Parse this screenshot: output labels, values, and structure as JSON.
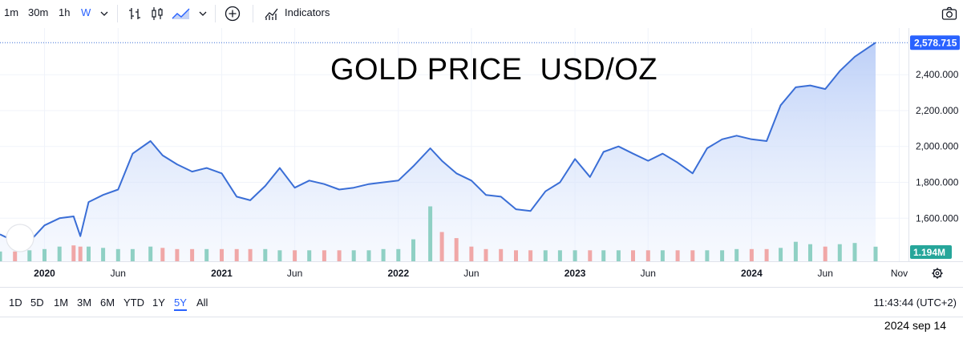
{
  "toolbar": {
    "intervals": [
      "1m",
      "30m",
      "1h",
      "W"
    ],
    "active_interval": "W",
    "indicators_label": "Indicators",
    "icons": [
      "chevron-down-icon",
      "bar-style-icon",
      "candle-style-icon",
      "area-style-icon",
      "add-icon",
      "indicators-icon",
      "camera-icon"
    ]
  },
  "title": "GOLD PRICE  USD/OZ",
  "colors": {
    "line": "#3a6ed6",
    "accent": "#2962ff",
    "volume_up": "#8fd0c4",
    "volume_down": "#f0a7a7",
    "label_bg": "#2962ff",
    "volume_label_bg": "#26a69a"
  },
  "chart_data": {
    "type": "area",
    "title": "GOLD PRICE  USD/OZ",
    "x_tick_labels": [
      "2020",
      "Jun",
      "2021",
      "Jun",
      "2022",
      "Jun",
      "2023",
      "Jun",
      "2024",
      "Jun",
      "Nov"
    ],
    "y_tick_labels": [
      "2,400.000",
      "2,200.000",
      "2,000.000",
      "1,800.000",
      "1,600.000"
    ],
    "y_ticks": [
      2400,
      2200,
      2000,
      1800,
      1600
    ],
    "ylim": [
      1360,
      2660
    ],
    "last_price": 2578.715,
    "last_price_label": "2,578.715",
    "volume_label": "1.194M",
    "grid": true,
    "series": [
      {
        "x": [
          "2019-10-01",
          "2019-11-01",
          "2019-12-01",
          "2020-01-01",
          "2020-02-01",
          "2020-03-01",
          "2020-03-15",
          "2020-04-01",
          "2020-05-01",
          "2020-06-01",
          "2020-07-01",
          "2020-08-07",
          "2020-09-01",
          "2020-10-01",
          "2020-11-01",
          "2020-12-01",
          "2021-01-01",
          "2021-02-01",
          "2021-03-01",
          "2021-04-01",
          "2021-05-01",
          "2021-06-01",
          "2021-07-01",
          "2021-08-01",
          "2021-09-01",
          "2021-10-01",
          "2021-11-01",
          "2021-12-01",
          "2022-01-01",
          "2022-02-01",
          "2022-03-08",
          "2022-04-01",
          "2022-05-01",
          "2022-06-01",
          "2022-07-01",
          "2022-08-01",
          "2022-09-01",
          "2022-10-01",
          "2022-11-01",
          "2022-12-01",
          "2023-01-01",
          "2023-02-01",
          "2023-03-01",
          "2023-04-01",
          "2023-05-01",
          "2023-06-01",
          "2023-07-01",
          "2023-08-01",
          "2023-09-01",
          "2023-10-01",
          "2023-11-01",
          "2023-12-01",
          "2024-01-01",
          "2024-02-01",
          "2024-03-01",
          "2024-04-01",
          "2024-05-01",
          "2024-06-01",
          "2024-07-01",
          "2024-08-01",
          "2024-09-13"
        ],
        "y": [
          1510,
          1470,
          1470,
          1560,
          1600,
          1610,
          1500,
          1690,
          1730,
          1760,
          1960,
          2030,
          1950,
          1900,
          1860,
          1880,
          1850,
          1720,
          1700,
          1780,
          1880,
          1770,
          1810,
          1790,
          1760,
          1770,
          1790,
          1800,
          1810,
          1890,
          1990,
          1920,
          1850,
          1810,
          1730,
          1720,
          1650,
          1640,
          1750,
          1800,
          1930,
          1830,
          1970,
          2000,
          1960,
          1920,
          1960,
          1910,
          1850,
          1990,
          2040,
          2060,
          2040,
          2030,
          2230,
          2330,
          2340,
          2320,
          2420,
          2500,
          2578.715
        ]
      }
    ],
    "volume": [
      0.8,
      0.8,
      0.9,
      1.0,
      1.2,
      1.3,
      1.2,
      1.2,
      1.1,
      1.0,
      1.0,
      1.2,
      1.1,
      1.0,
      1.0,
      1.0,
      1.0,
      1.0,
      1.0,
      1.0,
      0.9,
      0.9,
      0.9,
      0.9,
      0.9,
      0.9,
      0.9,
      1.0,
      1.0,
      1.8,
      4.5,
      2.4,
      1.9,
      1.2,
      1.0,
      1.0,
      0.9,
      0.9,
      0.9,
      0.9,
      0.9,
      0.9,
      0.9,
      0.9,
      0.9,
      0.9,
      0.9,
      0.9,
      0.9,
      0.9,
      0.9,
      1.0,
      1.0,
      1.0,
      1.1,
      1.6,
      1.4,
      1.2,
      1.4,
      1.5,
      1.194
    ],
    "volume_up": [
      true,
      false,
      true,
      true,
      true,
      false,
      false,
      true,
      true,
      true,
      true,
      true,
      false,
      false,
      false,
      true,
      false,
      false,
      false,
      true,
      true,
      false,
      true,
      false,
      false,
      true,
      true,
      true,
      true,
      true,
      true,
      false,
      false,
      false,
      false,
      false,
      false,
      false,
      true,
      true,
      true,
      false,
      true,
      true,
      false,
      false,
      true,
      false,
      false,
      true,
      true,
      true,
      false,
      false,
      true,
      true,
      true,
      false,
      true,
      true,
      true
    ]
  },
  "bottom": {
    "ranges": [
      "1D",
      "5D",
      "1M",
      "3M",
      "6M",
      "YTD",
      "1Y",
      "5Y",
      "All"
    ],
    "active_range": "5Y",
    "clock": "11:43:44 (UTC+2)"
  },
  "footer_date": "2024 sep 14"
}
